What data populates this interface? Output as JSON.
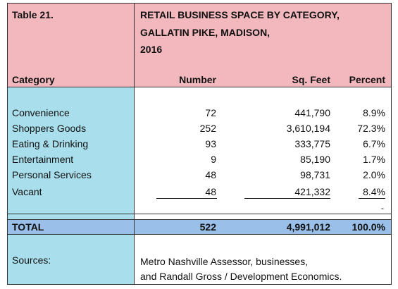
{
  "table_label": "Table 21.",
  "title_lines": [
    "RETAIL BUSINESS SPACE BY CATEGORY,",
    "GALLATIN PIKE, MADISON,",
    "2016"
  ],
  "columns": {
    "category": "Category",
    "number": "Number",
    "sqft": "Sq. Feet",
    "percent": "Percent"
  },
  "rows": [
    {
      "category": "Convenience",
      "number": "72",
      "sqft": "441,790",
      "percent": "8.9%"
    },
    {
      "category": "Shoppers Goods",
      "number": "252",
      "sqft": "3,610,194",
      "percent": "72.3%"
    },
    {
      "category": "Eating & Drinking",
      "number": "93",
      "sqft": "333,775",
      "percent": "6.7%"
    },
    {
      "category": "Entertainment",
      "number": "9",
      "sqft": "85,190",
      "percent": "1.7%"
    },
    {
      "category": "Personal Services",
      "number": "48",
      "sqft": "98,731",
      "percent": "2.0%"
    },
    {
      "category": "Vacant",
      "number": "48",
      "sqft": "421,332",
      "percent": "8.4%"
    }
  ],
  "stray_mark": "-",
  "total": {
    "label": "TOTAL",
    "number": "522",
    "sqft": "4,991,012",
    "percent": "100.0%"
  },
  "sources": {
    "label": "Sources:",
    "line1": "Metro Nashville Assessor, businesses,",
    "line2": "and Randall Gross / Development Economics."
  },
  "colors": {
    "header": "#f2b8bd",
    "left_column": "#a9dfec",
    "total_row": "#9ac0ea"
  }
}
